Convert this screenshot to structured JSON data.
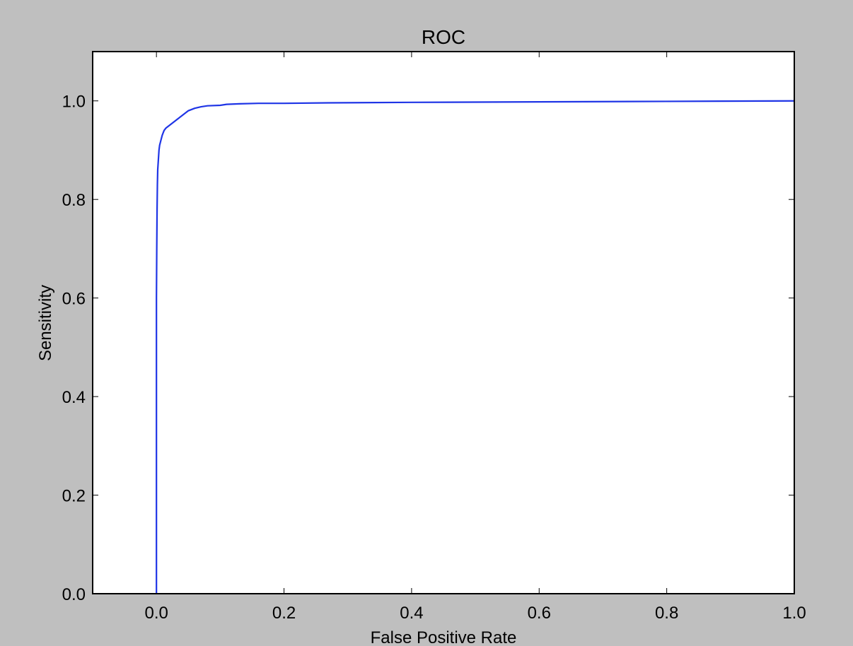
{
  "chart_data": {
    "type": "line",
    "title": "ROC",
    "xlabel": "False Positive Rate",
    "ylabel": "Sensitivity",
    "xlim": [
      -0.1,
      1.0
    ],
    "ylim": [
      0.0,
      1.1
    ],
    "xticks": [
      0.0,
      0.2,
      0.4,
      0.6,
      0.8,
      1.0
    ],
    "xtick_labels": [
      "0.0",
      "0.2",
      "0.4",
      "0.6",
      "0.8",
      "1.0"
    ],
    "yticks": [
      0.0,
      0.2,
      0.4,
      0.6,
      0.8,
      1.0
    ],
    "ytick_labels": [
      "0.0",
      "0.2",
      "0.4",
      "0.6",
      "0.8",
      "1.0"
    ],
    "grid": false,
    "legend": "none",
    "colors": {
      "figure_background": "#bfbfbf",
      "plot_background": "#ffffff",
      "line": "#1f35e6"
    },
    "series": [
      {
        "x": [
          0.0,
          0.0,
          0.0,
          0.0,
          0.0005,
          0.001,
          0.0015,
          0.002,
          0.003,
          0.004,
          0.005,
          0.007,
          0.009,
          0.012,
          0.015,
          0.02,
          0.025,
          0.03,
          0.035,
          0.04,
          0.045,
          0.05,
          0.06,
          0.07,
          0.08,
          0.1,
          0.11,
          0.13,
          0.16,
          0.2,
          0.27,
          0.4,
          0.6,
          0.8,
          1.0
        ],
        "y": [
          0.0,
          0.44,
          0.54,
          0.6,
          0.7,
          0.78,
          0.83,
          0.86,
          0.88,
          0.9,
          0.91,
          0.92,
          0.93,
          0.94,
          0.945,
          0.95,
          0.955,
          0.96,
          0.965,
          0.97,
          0.975,
          0.98,
          0.985,
          0.988,
          0.99,
          0.991,
          0.993,
          0.994,
          0.995,
          0.995,
          0.996,
          0.997,
          0.998,
          0.999,
          1.0
        ]
      }
    ]
  }
}
